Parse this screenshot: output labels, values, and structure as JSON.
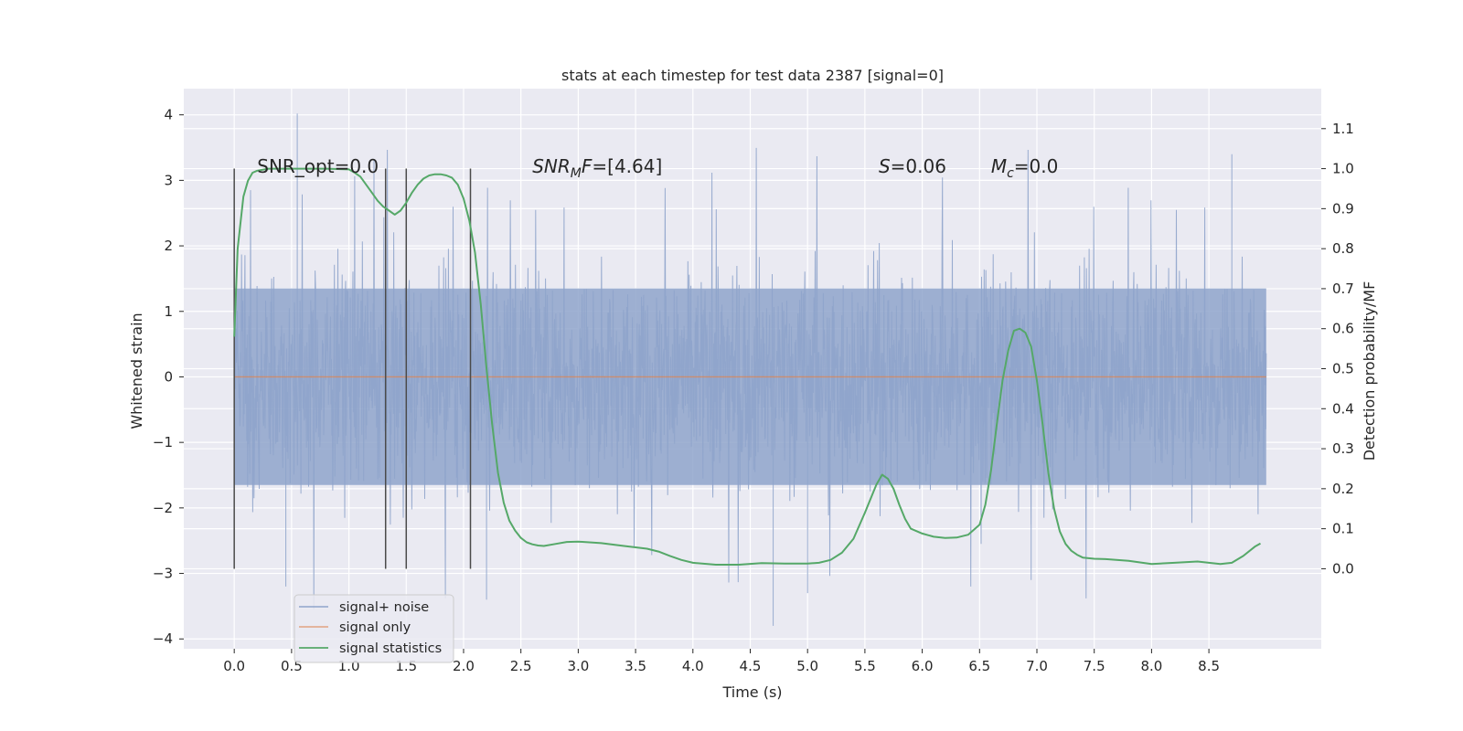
{
  "chart_data": {
    "type": "line",
    "title": "stats at each timestep for test data 2387 [signal=0]",
    "xlabel": "Time (s)",
    "ylabel": "Whitened strain",
    "ylabel_right": "Detection probability/MF",
    "xlim": [
      -0.44,
      9.48
    ],
    "ylim": [
      -4.15,
      4.4
    ],
    "ylim_right": [
      -0.2,
      1.2
    ],
    "xticks": [
      0.0,
      0.5,
      1.0,
      1.5,
      2.0,
      2.5,
      3.0,
      3.5,
      4.0,
      4.5,
      5.0,
      5.5,
      6.0,
      6.5,
      7.0,
      7.5,
      8.0,
      8.5
    ],
    "xtick_labels": [
      "0.0",
      "0.5",
      "1.0",
      "1.5",
      "2.0",
      "2.5",
      "3.0",
      "3.5",
      "4.0",
      "4.5",
      "5.0",
      "5.5",
      "6.0",
      "6.5",
      "7.0",
      "7.5",
      "8.0",
      "8.5"
    ],
    "yticks": [
      -4,
      -3,
      -2,
      -1,
      0,
      1,
      2,
      3,
      4
    ],
    "ytick_labels": [
      "−4",
      "−3",
      "−2",
      "−1",
      "0",
      "1",
      "2",
      "3",
      "4"
    ],
    "yticks_right": [
      0.0,
      0.1,
      0.2,
      0.3,
      0.4,
      0.5,
      0.6,
      0.7,
      0.8,
      0.9,
      1.0,
      1.1
    ],
    "ytick_labels_right": [
      "0.0",
      "0.1",
      "0.2",
      "0.3",
      "0.4",
      "0.5",
      "0.6",
      "0.7",
      "0.8",
      "0.9",
      "1.0",
      "1.1"
    ],
    "grid": true,
    "legend": {
      "position": "lower-left",
      "entries": [
        {
          "label": "signal+ noise",
          "color": "#8fa4cb"
        },
        {
          "label": "signal only",
          "color": "#dd8452"
        },
        {
          "label": "signal statistics",
          "color": "#55a868"
        }
      ]
    },
    "annotations": [
      {
        "name": "snr-opt",
        "x": 0.2,
        "y": 3.2,
        "parts": [
          {
            "t": "SNR_opt=0.0"
          }
        ]
      },
      {
        "name": "snr-mf",
        "x": 2.6,
        "y": 3.2,
        "parts": [
          {
            "t": "SNR",
            "i": true
          },
          {
            "t": "M",
            "i": true,
            "sub": true
          },
          {
            "t": "F",
            "i": true
          },
          {
            "t": "=[4.64]"
          }
        ]
      },
      {
        "name": "s-value",
        "x": 5.62,
        "y": 3.2,
        "parts": [
          {
            "t": "S",
            "i": true
          },
          {
            "t": "=0.06"
          }
        ]
      },
      {
        "name": "mc-value",
        "x": 6.6,
        "y": 3.2,
        "parts": [
          {
            "t": "M",
            "i": true
          },
          {
            "t": "c",
            "i": true,
            "sub": true
          },
          {
            "t": "=0.0"
          }
        ]
      }
    ],
    "vertical_markers": {
      "x": [
        0.0,
        1.32,
        1.5,
        2.06
      ],
      "y_range": [
        -2.93,
        3.18
      ],
      "color": "#4a4a4a"
    },
    "series": [
      {
        "name": "signal+ noise",
        "color": "#8fa4cb",
        "x_range": [
          0.0,
          9.0
        ],
        "band_core": [
          -1.65,
          1.35
        ],
        "typical_peak": 2.2,
        "max": 4.02,
        "min": -3.8
      },
      {
        "name": "signal only",
        "color": "#dd8452",
        "x": [
          0.0,
          9.0
        ],
        "values": [
          0.0,
          0.0
        ]
      },
      {
        "name": "signal statistics",
        "color": "#55a868",
        "axis": "right",
        "x": [
          0.0,
          0.03,
          0.08,
          0.12,
          0.16,
          0.2,
          0.3,
          0.5,
          0.8,
          1.0,
          1.05,
          1.1,
          1.15,
          1.2,
          1.25,
          1.3,
          1.35,
          1.4,
          1.45,
          1.5,
          1.55,
          1.6,
          1.65,
          1.7,
          1.75,
          1.8,
          1.85,
          1.9,
          1.95,
          2.0,
          2.05,
          2.1,
          2.15,
          2.2,
          2.25,
          2.3,
          2.35,
          2.4,
          2.45,
          2.5,
          2.55,
          2.6,
          2.65,
          2.7,
          2.8,
          2.9,
          3.0,
          3.2,
          3.4,
          3.6,
          3.7,
          3.8,
          3.9,
          4.0,
          4.2,
          4.4,
          4.6,
          4.8,
          5.0,
          5.1,
          5.2,
          5.3,
          5.4,
          5.5,
          5.6,
          5.65,
          5.7,
          5.75,
          5.8,
          5.85,
          5.9,
          6.0,
          6.1,
          6.2,
          6.3,
          6.4,
          6.5,
          6.55,
          6.6,
          6.65,
          6.7,
          6.75,
          6.8,
          6.85,
          6.9,
          6.95,
          7.0,
          7.05,
          7.1,
          7.15,
          7.2,
          7.25,
          7.3,
          7.35,
          7.4,
          7.5,
          7.6,
          7.8,
          8.0,
          8.2,
          8.4,
          8.6,
          8.7,
          8.8,
          8.9,
          8.95
        ],
        "values": [
          0.58,
          0.8,
          0.93,
          0.97,
          0.99,
          0.995,
          1.0,
          1.0,
          1.0,
          0.998,
          0.99,
          0.98,
          0.96,
          0.94,
          0.92,
          0.905,
          0.895,
          0.885,
          0.895,
          0.915,
          0.94,
          0.96,
          0.975,
          0.983,
          0.986,
          0.986,
          0.983,
          0.977,
          0.96,
          0.925,
          0.87,
          0.79,
          0.66,
          0.5,
          0.36,
          0.24,
          0.165,
          0.12,
          0.095,
          0.077,
          0.066,
          0.061,
          0.058,
          0.057,
          0.062,
          0.067,
          0.068,
          0.064,
          0.057,
          0.05,
          0.043,
          0.032,
          0.022,
          0.015,
          0.01,
          0.01,
          0.014,
          0.013,
          0.013,
          0.015,
          0.022,
          0.04,
          0.075,
          0.14,
          0.21,
          0.235,
          0.225,
          0.2,
          0.16,
          0.125,
          0.1,
          0.088,
          0.08,
          0.077,
          0.078,
          0.085,
          0.11,
          0.16,
          0.245,
          0.36,
          0.47,
          0.545,
          0.595,
          0.6,
          0.59,
          0.555,
          0.47,
          0.36,
          0.24,
          0.15,
          0.093,
          0.062,
          0.045,
          0.035,
          0.028,
          0.025,
          0.024,
          0.02,
          0.012,
          0.015,
          0.018,
          0.012,
          0.015,
          0.032,
          0.055,
          0.063
        ]
      }
    ]
  }
}
